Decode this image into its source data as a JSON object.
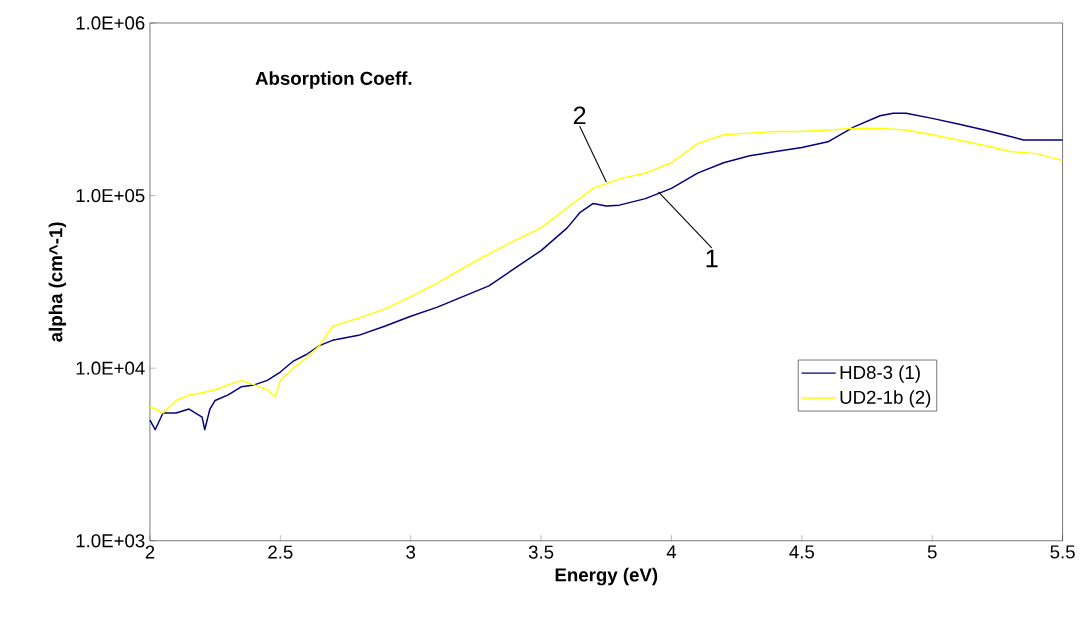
{
  "chart_data": {
    "type": "line",
    "xlabel": "Energy (eV)",
    "ylabel": "alpha (cm^-1)",
    "log": "y",
    "xlim": [
      2,
      5.5
    ],
    "xticks": [
      2,
      2.5,
      3,
      3.5,
      4,
      4.5,
      5,
      5.5
    ],
    "ylim": [
      1000,
      1000000
    ],
    "yticks": [
      {
        "value": 1000,
        "label": "1.0E+03"
      },
      {
        "value": 10000,
        "label": "1.0E+04"
      },
      {
        "value": 100000,
        "label": "1.0E+05"
      },
      {
        "value": 1000000,
        "label": "1.0E+06"
      }
    ],
    "grid": false,
    "legend": "right",
    "marker": "none",
    "line_style": "solid",
    "annotations": [
      "Absorption Coeff.",
      {
        "text": "2",
        "x": 3.75,
        "y": 120000
      },
      {
        "text": "1",
        "x": 3.95,
        "y": 105000
      }
    ],
    "series": [
      {
        "name": "HD8-3 (1)",
        "color": "#000080",
        "x": [
          2.0,
          2.02,
          2.05,
          2.1,
          2.15,
          2.2,
          2.21,
          2.23,
          2.25,
          2.3,
          2.35,
          2.4,
          2.45,
          2.5,
          2.55,
          2.6,
          2.65,
          2.7,
          2.8,
          2.9,
          3.0,
          3.1,
          3.2,
          3.3,
          3.4,
          3.5,
          3.6,
          3.65,
          3.7,
          3.75,
          3.8,
          3.9,
          4.0,
          4.1,
          4.2,
          4.3,
          4.4,
          4.5,
          4.6,
          4.7,
          4.8,
          4.85,
          4.9,
          5.0,
          5.1,
          5.2,
          5.3,
          5.35,
          5.5
        ],
        "values": [
          5000,
          4400,
          5500,
          5500,
          5800,
          5200,
          4400,
          5800,
          6500,
          7000,
          7800,
          8000,
          8500,
          9500,
          11000,
          12000,
          13500,
          14500,
          15500,
          17500,
          20000,
          22500,
          26000,
          30000,
          38000,
          48000,
          65000,
          80000,
          90000,
          87000,
          88000,
          96000,
          110000,
          135000,
          155000,
          170000,
          180000,
          190000,
          205000,
          250000,
          290000,
          300000,
          300000,
          280000,
          260000,
          240000,
          220000,
          210000,
          210000
        ]
      },
      {
        "name": "UD2-1b (2)",
        "color": "#ffff00",
        "x": [
          2.0,
          2.05,
          2.1,
          2.15,
          2.2,
          2.25,
          2.3,
          2.35,
          2.4,
          2.45,
          2.48,
          2.5,
          2.55,
          2.6,
          2.65,
          2.7,
          2.8,
          2.9,
          3.0,
          3.1,
          3.2,
          3.3,
          3.4,
          3.5,
          3.6,
          3.7,
          3.8,
          3.9,
          4.0,
          4.1,
          4.2,
          4.3,
          4.4,
          4.5,
          4.6,
          4.7,
          4.8,
          4.9,
          5.0,
          5.1,
          5.2,
          5.3,
          5.4,
          5.5
        ],
        "values": [
          6000,
          5500,
          6500,
          7000,
          7200,
          7500,
          8000,
          8500,
          8000,
          7500,
          6800,
          8500,
          10000,
          11500,
          13500,
          17500,
          19500,
          22000,
          26000,
          31000,
          38000,
          46000,
          55000,
          65000,
          85000,
          110000,
          125000,
          135000,
          155000,
          200000,
          225000,
          230000,
          235000,
          235000,
          240000,
          245000,
          245000,
          240000,
          225000,
          210000,
          195000,
          180000,
          175000,
          160000
        ]
      }
    ]
  }
}
